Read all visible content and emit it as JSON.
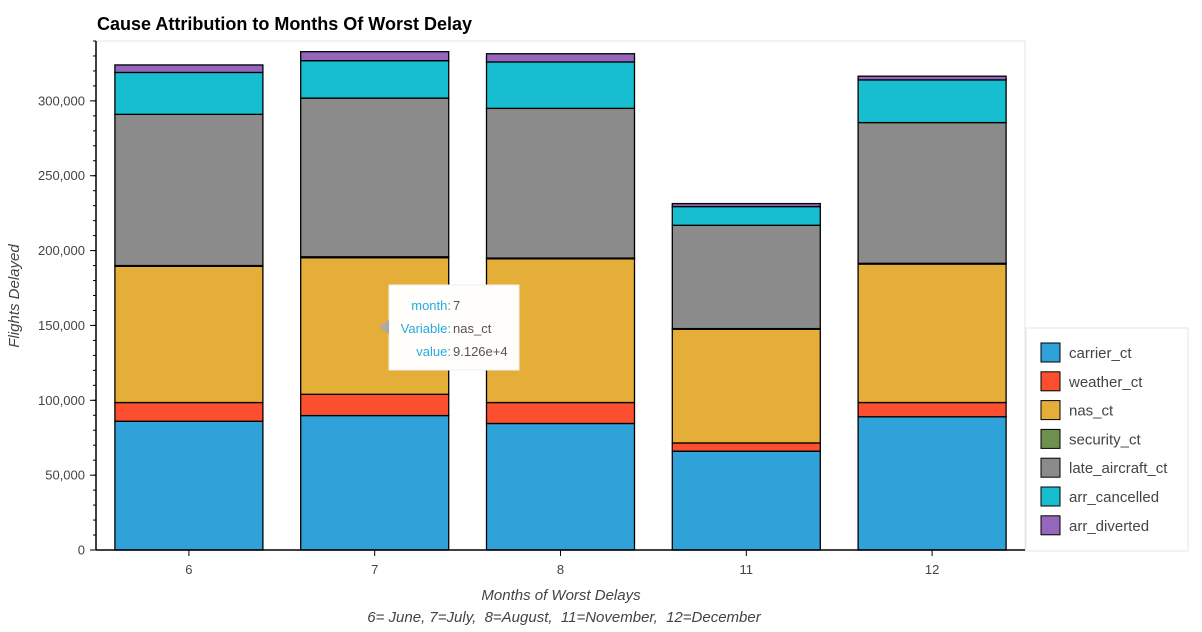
{
  "chart_data": {
    "type": "bar",
    "stacked": true,
    "title": "Cause Attribution to Months Of Worst Delay",
    "xlabel": "Months of Worst Delays",
    "xlabel_note": "6= June, 7=July,  8=August,  11=November,  12=December",
    "ylabel": "Flights Delayed",
    "ylim": [
      0,
      340000
    ],
    "yticks": [
      0,
      50000,
      100000,
      150000,
      200000,
      250000,
      300000
    ],
    "ytick_labels": [
      "0",
      "50,000",
      "100,000",
      "150,000",
      "200,000",
      "250,000",
      "300,000"
    ],
    "categories": [
      "6",
      "7",
      "8",
      "11",
      "12"
    ],
    "legend_position": "right",
    "series": [
      {
        "name": "carrier_ct",
        "color": "#30a2da",
        "values": [
          86000,
          89800,
          84500,
          66000,
          89000
        ]
      },
      {
        "name": "weather_ct",
        "color": "#fc4f30",
        "values": [
          12500,
          14200,
          14000,
          5500,
          9500
        ]
      },
      {
        "name": "nas_ct",
        "color": "#e5ae38",
        "values": [
          91000,
          91260,
          96000,
          76000,
          92500
        ]
      },
      {
        "name": "security_ct",
        "color": "#6d904f",
        "values": [
          500,
          600,
          500,
          400,
          500
        ]
      },
      {
        "name": "late_aircraft_ct",
        "color": "#8b8b8b",
        "values": [
          101000,
          106000,
          100000,
          69000,
          94000
        ]
      },
      {
        "name": "arr_cancelled",
        "color": "#17becf",
        "values": [
          28000,
          25000,
          31000,
          12500,
          28500
        ]
      },
      {
        "name": "arr_diverted",
        "color": "#9467bd",
        "values": [
          5000,
          6000,
          5500,
          2000,
          2500
        ]
      }
    ],
    "tooltip": {
      "rows": [
        {
          "key": "month:",
          "value": "7"
        },
        {
          "key": "Variable:",
          "value": "nas_ct"
        },
        {
          "key": "value:",
          "value": "9.126e+4"
        }
      ]
    }
  }
}
